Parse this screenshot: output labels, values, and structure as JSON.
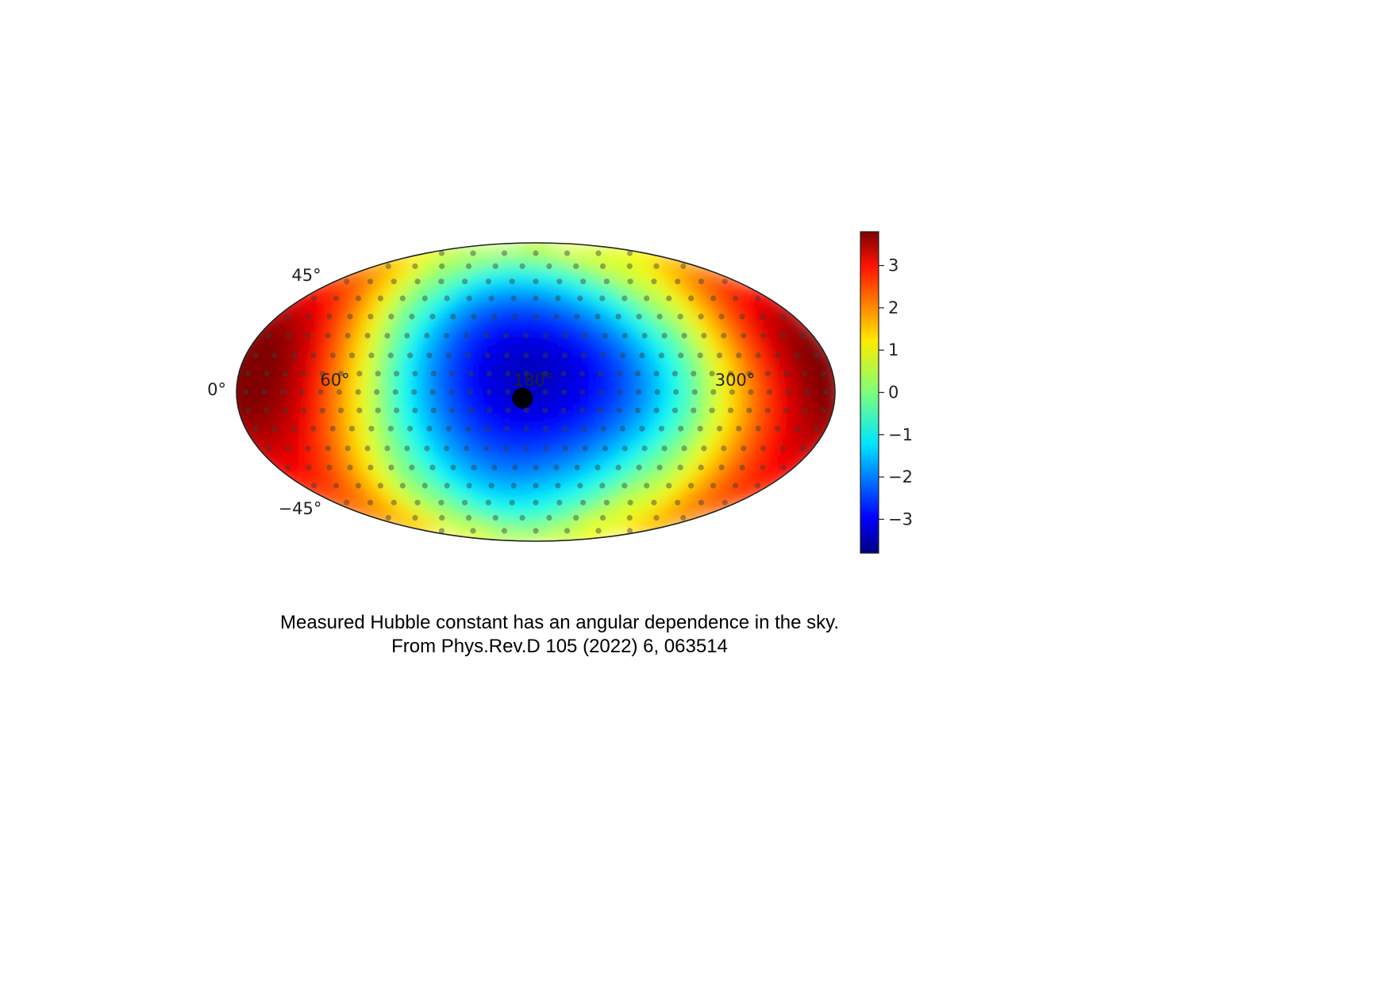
{
  "chart_data": {
    "type": "heatmap",
    "projection": "mollweide",
    "title": "",
    "longitude_tick_labels": [
      "0°",
      "60°",
      "180°",
      "300°"
    ],
    "latitude_tick_labels": [
      "45°",
      "−45°"
    ],
    "colormap": "jet",
    "colorbar": {
      "ticks": [
        3,
        2,
        1,
        0,
        -1,
        -2,
        -3
      ],
      "tick_labels": [
        "3",
        "2",
        "1",
        "0",
        "−1",
        "−2",
        "−3"
      ],
      "range": [
        -3.8,
        3.8
      ]
    },
    "field_description": "high positive values near longitude 0° and 360°, strongly negative values centered near longitude 180°",
    "highlight_point": {
      "lon": 172,
      "lat": -3
    },
    "sample_grid_markers": true
  },
  "caption": {
    "line1": "Measured Hubble constant has an angular dependence in the sky.",
    "line2": "From Phys.Rev.D 105 (2022) 6, 063514"
  }
}
